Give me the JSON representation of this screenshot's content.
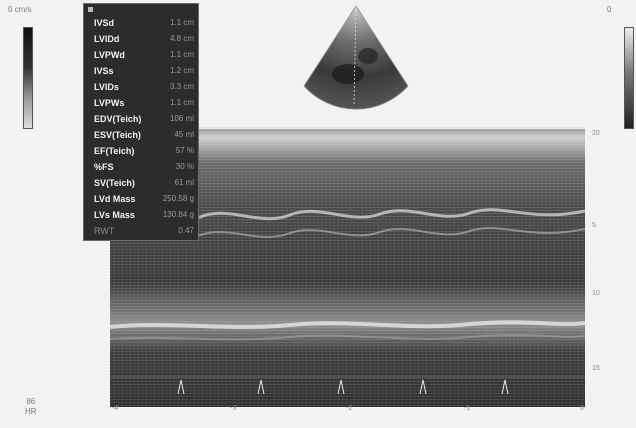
{
  "corners": {
    "top_left": "0 cm/s",
    "top_right": "0"
  },
  "measurements": [
    {
      "label": "IVSd",
      "value": "1.1 cm"
    },
    {
      "label": "LVIDd",
      "value": "4.8 cm"
    },
    {
      "label": "LVPWd",
      "value": "1.1 cm"
    },
    {
      "label": "IVSs",
      "value": "1.2 cm"
    },
    {
      "label": "LVIDs",
      "value": "3.3 cm"
    },
    {
      "label": "LVPWs",
      "value": "1.1 cm"
    },
    {
      "label": "EDV(Teich)",
      "value": "106 ml"
    },
    {
      "label": "ESV(Teich)",
      "value": "45 ml"
    },
    {
      "label": "EF(Teich)",
      "value": "57 %"
    },
    {
      "label": "%FS",
      "value": "30 %"
    },
    {
      "label": "SV(Teich)",
      "value": "61 ml"
    },
    {
      "label": "LVd Mass",
      "value": "250.58 g"
    },
    {
      "label": "LVs Mass",
      "value": "130.84 g"
    },
    {
      "label": "RWT",
      "value": "0.47"
    }
  ],
  "depth_ticks": [
    "5",
    "10",
    "15",
    "20"
  ],
  "time_ticks": [
    "-4",
    "-3",
    "-2",
    "-1",
    "0"
  ],
  "hr": {
    "value": "86",
    "label": "HR"
  }
}
